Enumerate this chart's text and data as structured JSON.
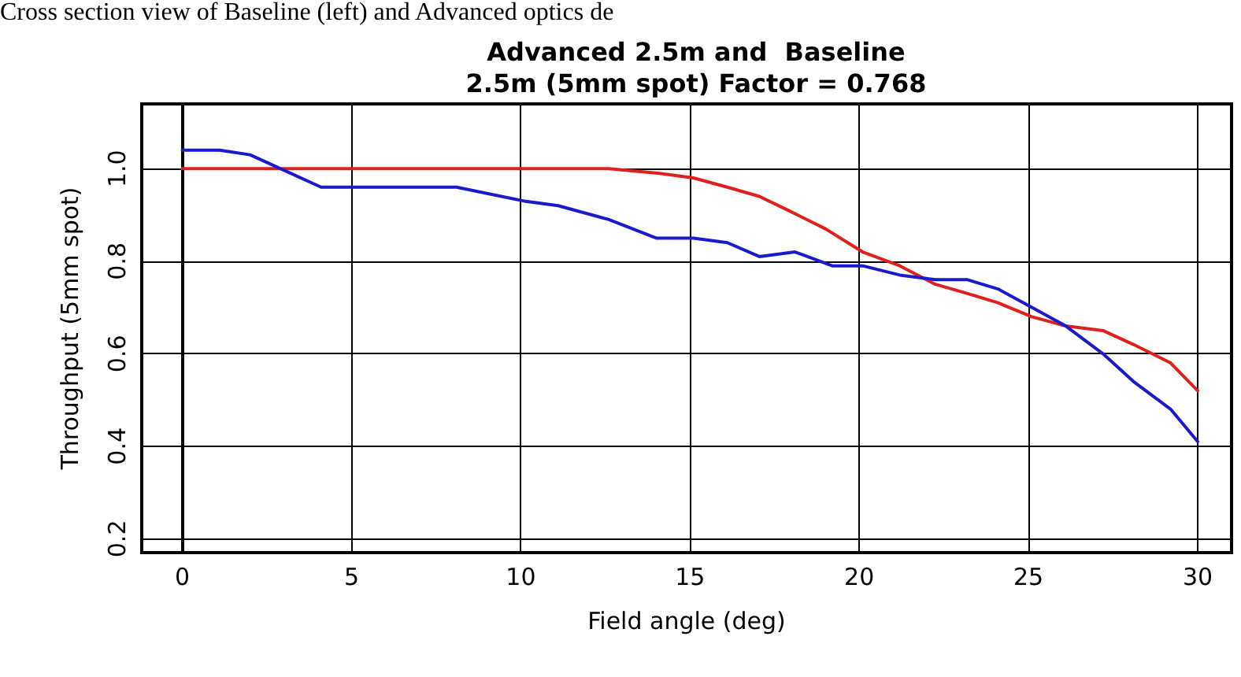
{
  "chart_data": {
    "type": "line",
    "title": "Advanced 2.5m and  Baseline",
    "subtitle": "2.5m (5mm spot) Factor = 0.768",
    "xlabel": "Field angle (deg)",
    "ylabel": "Throughput (5mm spot)",
    "annotations": [
      "Cross section view of Baseline (left) and Advanced optics de"
    ],
    "xlim": [
      -1.2,
      31
    ],
    "xticks": [
      0,
      5,
      10,
      15,
      20,
      25,
      30
    ],
    "ylim": [
      0.17,
      1.14
    ],
    "yticks": [
      {
        "value": 0.2,
        "label": "0.2"
      },
      {
        "value": 0.4,
        "label": "0.4"
      },
      {
        "value": 0.6,
        "label": "0.6"
      },
      {
        "value": 0.8,
        "label": "0.8"
      },
      {
        "value": 1.0,
        "label": "1.0"
      }
    ],
    "grid": true,
    "marker": "none",
    "line_style": "solid",
    "series": [
      {
        "color": "#e0201c",
        "x": [
          0,
          2,
          4,
          6,
          8,
          10,
          11,
          12,
          12.6,
          14.1,
          15.1,
          16.1,
          17.05,
          17.9,
          19,
          20.1,
          21.2,
          22.25,
          23.2,
          24.1,
          25.1,
          26.1,
          27.2,
          28.1,
          29.2,
          30
        ],
        "values": [
          1.0,
          1.0,
          1.0,
          1.0,
          1.0,
          1.0,
          1.0,
          1.0,
          1.0,
          0.99,
          0.98,
          0.96,
          0.94,
          0.91,
          0.87,
          0.82,
          0.79,
          0.75,
          0.73,
          0.71,
          0.68,
          0.66,
          0.65,
          0.62,
          0.58,
          0.52
        ]
      },
      {
        "color": "#1a1acc",
        "x": [
          0,
          1.1,
          2,
          4.1,
          8.1,
          10.1,
          11.1,
          12.6,
          14,
          15.1,
          16.1,
          17.05,
          18.1,
          19.2,
          20.1,
          21.2,
          22.25,
          23.2,
          24.1,
          25.1,
          26.1,
          27.2,
          28.1,
          29.2,
          30
        ],
        "values": [
          1.04,
          1.04,
          1.03,
          0.96,
          0.96,
          0.93,
          0.92,
          0.89,
          0.85,
          0.85,
          0.84,
          0.81,
          0.82,
          0.79,
          0.79,
          0.77,
          0.76,
          0.76,
          0.74,
          0.7,
          0.66,
          0.6,
          0.54,
          0.48,
          0.41
        ]
      }
    ]
  }
}
